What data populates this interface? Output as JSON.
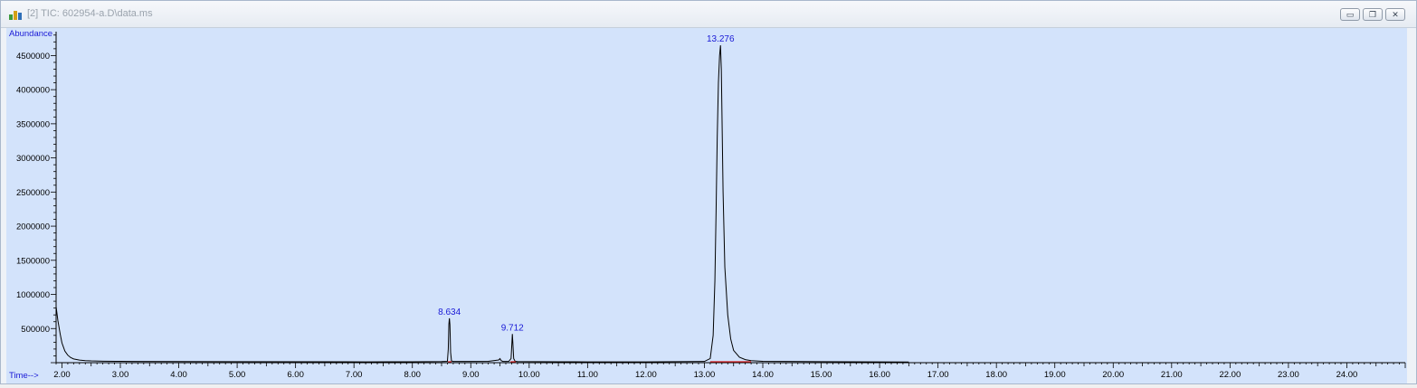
{
  "window": {
    "title": "[2] TIC: 602954-a.D\\data.ms",
    "buttons": [
      {
        "name": "minimize",
        "icon": "minimize-icon",
        "glyph": "▭"
      },
      {
        "name": "restore",
        "icon": "restore-icon",
        "glyph": "❐"
      },
      {
        "name": "close",
        "icon": "close-icon",
        "glyph": "✕"
      }
    ]
  },
  "colors": {
    "plot_background": "#d3e3fb",
    "trace": "#000000",
    "peak_labels": "#1a1ad6",
    "baseline_markers": "#d21c1c"
  },
  "chart_data": {
    "type": "line",
    "title": "",
    "ylabel": "Abundance",
    "xlabel": "Time-->",
    "xlim": [
      1.9,
      25.0
    ],
    "ylim": [
      0,
      4850000
    ],
    "grid": false,
    "legend": "none",
    "xticks": [
      "2.00",
      "3.00",
      "4.00",
      "5.00",
      "6.00",
      "7.00",
      "8.00",
      "9.00",
      "10.00",
      "11.00",
      "12.00",
      "13.00",
      "14.00",
      "15.00",
      "16.00",
      "17.00",
      "18.00",
      "19.00",
      "20.00",
      "21.00",
      "22.00",
      "23.00",
      "24.00"
    ],
    "yticks": [
      "500000",
      "1000000",
      "1500000",
      "2000000",
      "2500000",
      "3000000",
      "3500000",
      "4000000",
      "4500000"
    ],
    "series": [
      {
        "x": [
          1.9,
          1.93,
          1.97,
          2.0,
          2.05,
          2.1,
          2.15,
          2.2,
          2.3,
          2.4,
          2.5,
          2.7,
          3.0,
          3.2,
          7.2,
          7.6,
          8.0,
          8.5,
          8.6,
          8.615,
          8.625,
          8.634,
          8.643,
          8.655,
          8.67,
          8.7,
          9.0,
          9.3,
          9.48,
          9.5,
          9.52,
          9.55,
          9.65,
          9.69,
          9.705,
          9.712,
          9.72,
          9.735,
          9.76,
          9.8,
          10.5,
          11.0,
          12.0,
          13.0,
          13.1,
          13.15,
          13.18,
          13.2,
          13.22,
          13.24,
          13.26,
          13.276,
          13.29,
          13.3,
          13.32,
          13.35,
          13.4,
          13.45,
          13.5,
          13.6,
          13.7,
          13.8,
          14.0,
          15.0,
          16.0,
          16.5
        ],
        "y": [
          820000,
          620000,
          420000,
          290000,
          170000,
          110000,
          75000,
          55000,
          38000,
          30000,
          26000,
          22000,
          20000,
          18000,
          12000,
          13000,
          14000,
          16000,
          20000,
          200000,
          560000,
          650000,
          560000,
          150000,
          25000,
          18000,
          18000,
          20000,
          40000,
          60000,
          30000,
          18000,
          18000,
          60000,
          300000,
          420000,
          300000,
          60000,
          20000,
          16000,
          14000,
          12000,
          12000,
          18000,
          60000,
          400000,
          1200000,
          2200000,
          3300000,
          4100000,
          4500000,
          4650000,
          4300000,
          3700000,
          2500000,
          1400000,
          700000,
          350000,
          180000,
          80000,
          45000,
          30000,
          20000,
          15000,
          12000,
          10000
        ]
      }
    ],
    "peak_annotations": [
      {
        "label": "8.634",
        "x": 8.634,
        "y": 650000
      },
      {
        "label": "9.712",
        "x": 9.712,
        "y": 420000
      },
      {
        "label": "13.276",
        "x": 13.276,
        "y": 4650000
      }
    ],
    "baseline_markers": [
      {
        "start": 8.61,
        "end": 8.67
      },
      {
        "start": 9.68,
        "end": 9.77
      },
      {
        "start": 13.1,
        "end": 13.8
      }
    ]
  }
}
